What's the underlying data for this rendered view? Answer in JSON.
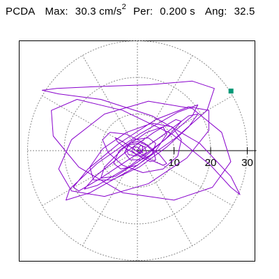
{
  "header": {
    "title": "PCDA",
    "max_label": "Max:",
    "max_value": "30.3",
    "max_unit": "cm/s",
    "max_unit_exp": "2",
    "per_label": "Per:",
    "per_value": "0.200 s",
    "ang_label": "Ang:",
    "ang_value": "32.5"
  },
  "chart_data": {
    "type": "scatter",
    "title": "PCDA",
    "max_value": 30.3,
    "max_units": "cm/s2",
    "period_s": 0.2,
    "angle_deg": 32.5,
    "polar": true,
    "r_ticks": [
      10,
      20,
      30
    ],
    "tick_labels": [
      "10",
      "20",
      "30"
    ],
    "rlim": [
      0,
      30
    ],
    "grid": true,
    "spoke_spacing_deg": 30,
    "trace_color": "#8800cc",
    "peak_marker_color": "#009977",
    "peak_point": {
      "r": 30.3,
      "theta_deg": 32.5
    },
    "orbit_x": [
      0.0,
      0.5,
      1.0,
      1.5,
      1.0,
      -0.5,
      -2.5,
      -3.0,
      -2.0,
      0.0,
      2.5,
      4.5,
      5.0,
      3.5,
      0.5,
      -3.0,
      -5.5,
      -6.0,
      -4.0,
      -0.5,
      3.5,
      7.0,
      8.0,
      6.0,
      2.0,
      -3.0,
      -7.5,
      -9.5,
      -8.0,
      -4.0,
      1.5,
      7.0,
      11.0,
      12.0,
      9.5,
      4.0,
      -3.0,
      -9.5,
      -13.0,
      -12.0,
      -7.0,
      0.5,
      8.0,
      14.0,
      16.5,
      14.0,
      8.0,
      -1.0,
      -10.0,
      -16.0,
      -17.5,
      -13.5,
      -5.0,
      5.0,
      14.0,
      19.5,
      19.5,
      13.5,
      3.0,
      -9.0,
      -18.0,
      -21.5,
      -18.0,
      -9.0,
      3.0,
      15.0,
      23.0,
      25.5,
      20.5,
      10.0,
      -4.0,
      -16.0,
      -23.0,
      -23.5,
      -16.5,
      -4.0,
      9.5,
      20.0,
      25.5,
      28.0,
      25.5,
      17.0,
      4.0,
      -10.0,
      -21.5,
      -26.0,
      -22.0,
      -11.0,
      3.0,
      15.0,
      21.0,
      19.0,
      10.5,
      -1.5,
      -13.0,
      -19.5,
      -18.5,
      -11.0,
      0.5,
      11.0,
      16.5,
      15.0,
      7.5,
      -2.5,
      -11.0,
      -14.5,
      -11.5,
      -4.0,
      4.5,
      10.5,
      12.0,
      8.0,
      1.0,
      -6.0,
      -10.0,
      -9.0,
      -4.0,
      2.5,
      7.0,
      8.0,
      5.0,
      0.0,
      -4.5,
      -6.5,
      -5.0,
      -1.0,
      3.0,
      5.0,
      4.0,
      1.0,
      -2.0,
      -3.5,
      -2.5,
      0.0,
      2.0,
      2.5,
      1.0,
      -0.5,
      -1.5,
      -1.0,
      0.0,
      1.0,
      1.5,
      0.5,
      -0.5,
      -1.0
    ],
    "orbit_y": [
      0.0,
      1.0,
      1.5,
      1.0,
      -0.5,
      -1.5,
      -1.0,
      0.5,
      2.0,
      2.5,
      1.5,
      -0.5,
      -2.5,
      -3.0,
      -1.5,
      0.5,
      2.5,
      3.5,
      2.5,
      0.0,
      -2.5,
      -4.0,
      -3.5,
      -1.0,
      2.0,
      4.5,
      5.0,
      3.0,
      -0.5,
      -4.0,
      -6.0,
      -5.0,
      -1.5,
      3.0,
      6.5,
      7.5,
      5.0,
      0.5,
      -4.5,
      -8.0,
      -8.0,
      -4.5,
      1.0,
      6.5,
      10.0,
      9.5,
      5.0,
      -1.5,
      -7.5,
      -11.0,
      -10.0,
      -5.0,
      2.0,
      8.5,
      12.0,
      11.0,
      5.5,
      -2.0,
      -9.0,
      -12.5,
      -11.0,
      -5.0,
      3.0,
      10.0,
      13.5,
      11.5,
      5.0,
      -3.0,
      -10.0,
      -13.5,
      -11.5,
      -4.5,
      4.0,
      11.0,
      14.0,
      11.0,
      4.5,
      -4.0,
      -10.0,
      -12.0,
      -7.0,
      2.0,
      9.5,
      14.0,
      15.5,
      16.5,
      17.0,
      17.5,
      18.0,
      19.0,
      17.0,
      11.0,
      3.5,
      -5.0,
      -11.5,
      -13.5,
      -10.5,
      -3.5,
      4.5,
      10.5,
      12.5,
      9.5,
      3.0,
      -4.5,
      -9.5,
      -10.5,
      -7.0,
      -1.0,
      5.0,
      8.5,
      8.0,
      3.5,
      -2.5,
      -7.0,
      -7.5,
      -4.5,
      0.5,
      5.0,
      6.5,
      4.5,
      0.0,
      -4.0,
      -5.0,
      -3.5,
      0.0,
      3.0,
      3.5,
      2.0,
      -1.0,
      -2.5,
      -2.5,
      -0.5,
      1.5,
      2.0,
      1.0,
      -0.5,
      -1.5,
      -1.0,
      0.0,
      1.0,
      1.0,
      0.0,
      -0.5,
      -0.5,
      0.0,
      0.5
    ]
  }
}
